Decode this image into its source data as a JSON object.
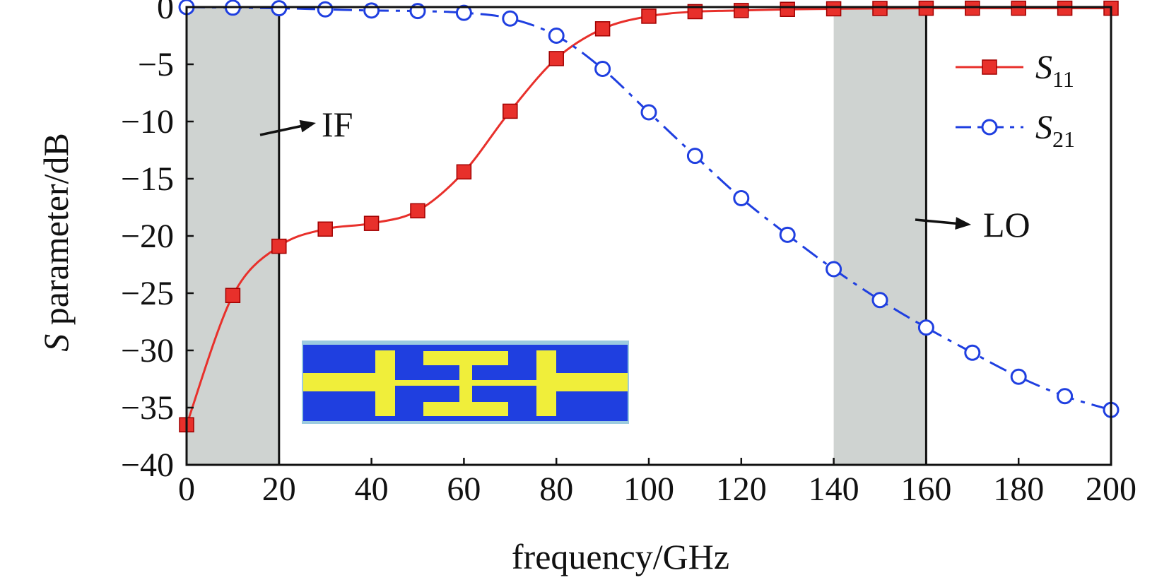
{
  "chart_data": {
    "type": "line",
    "title": "",
    "xlabel": "frequency/GHz",
    "ylabel_italic": "S",
    "ylabel_rest": " parameter/dB",
    "xlim": [
      0,
      200
    ],
    "ylim": [
      -40,
      0
    ],
    "x_ticks": [
      0,
      20,
      40,
      60,
      80,
      100,
      120,
      140,
      160,
      180,
      200
    ],
    "y_ticks": [
      0,
      -5,
      -10,
      -15,
      -20,
      -25,
      -30,
      -35,
      -40
    ],
    "x_tick_labels": [
      "0",
      "20",
      "40",
      "60",
      "80",
      "100",
      "120",
      "140",
      "160",
      "180",
      "200"
    ],
    "y_tick_labels": [
      "0",
      "−5",
      "−10",
      "−15",
      "−20",
      "−25",
      "−30",
      "−35",
      "−40"
    ],
    "grid": false,
    "legend_position": "top-right",
    "x": [
      0,
      10,
      20,
      30,
      40,
      50,
      60,
      70,
      80,
      90,
      100,
      110,
      120,
      130,
      140,
      150,
      160,
      170,
      180,
      190,
      200
    ],
    "series": [
      {
        "name": "S11",
        "legend_main": "S",
        "legend_sub": "11",
        "color": "#e8302b",
        "marker": "square",
        "line_style": "solid",
        "values": [
          -36.5,
          -25.2,
          -20.9,
          -19.4,
          -18.9,
          -17.8,
          -14.4,
          -9.1,
          -4.5,
          -1.9,
          -0.8,
          -0.4,
          -0.3,
          -0.2,
          -0.15,
          -0.12,
          -0.1,
          -0.1,
          -0.1,
          -0.1,
          -0.1
        ]
      },
      {
        "name": "S21",
        "legend_main": "S",
        "legend_sub": "21",
        "color": "#1f3fe0",
        "marker": "circle",
        "line_style": "dash-dot",
        "values": [
          0.0,
          -0.05,
          -0.1,
          -0.2,
          -0.3,
          -0.35,
          -0.5,
          -1.0,
          -2.5,
          -5.4,
          -9.2,
          -13.0,
          -16.7,
          -19.9,
          -22.9,
          -25.6,
          -28.0,
          -30.2,
          -32.3,
          -34.0,
          -35.2
        ]
      }
    ],
    "bands": [
      {
        "x_start": 0,
        "x_end": 20,
        "color": "#cfd3d1"
      },
      {
        "x_start": 140,
        "x_end": 160,
        "color": "#cfd3d1"
      }
    ],
    "vertical_lines": [
      20,
      160
    ],
    "annotations": [
      {
        "text": "IF",
        "x": 22,
        "y": -9
      },
      {
        "text": "LO",
        "x": 172,
        "y": -18.5
      }
    ],
    "inset": {
      "description_colors": {
        "background": "#1f3fe0",
        "trace": "#f0ee3a",
        "border": "#9ccbe0"
      }
    }
  }
}
